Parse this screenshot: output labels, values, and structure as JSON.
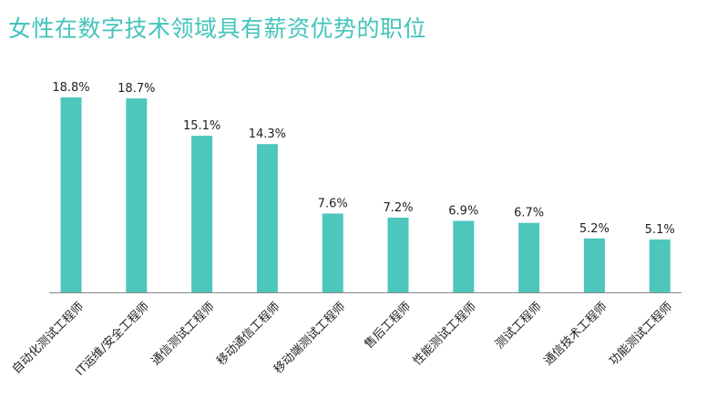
{
  "title": "女性在数字技术领域具有薪资优势的职位",
  "colors": {
    "title": "#43C4BA",
    "bar": "#4DC6BC",
    "axis": "#888888",
    "text": "#222222"
  },
  "chart_data": {
    "type": "bar",
    "title": "女性在数字技术领域具有薪资优势的职位",
    "categories": [
      "自动化测试工程师",
      "IT运维/安全工程师",
      "通信测试工程师",
      "移动通信工程师",
      "移动端测试工程师",
      "售后工程师",
      "性能测试工程师",
      "测试工程师",
      "通信技术工程师",
      "功能测试工程师"
    ],
    "values": [
      18.8,
      18.7,
      15.1,
      14.3,
      7.6,
      7.2,
      6.9,
      6.7,
      5.2,
      5.1
    ],
    "value_labels": [
      "18.8%",
      "18.7%",
      "15.1%",
      "14.3%",
      "7.6%",
      "7.2%",
      "6.9%",
      "6.7%",
      "5.2%",
      "5.1%"
    ],
    "unit": "%",
    "ylim": [
      0,
      18.8
    ],
    "grid": false,
    "legend": "none"
  }
}
